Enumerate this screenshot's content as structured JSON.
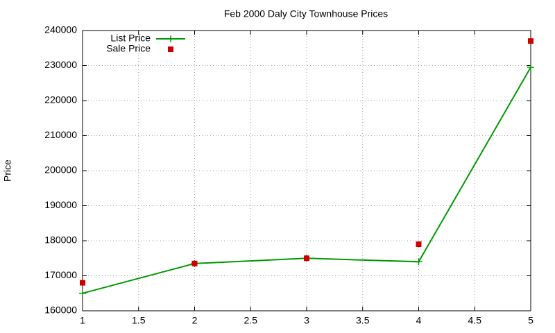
{
  "chart_data": {
    "type": "line",
    "title": "Feb 2000 Daly City Townhouse Prices",
    "y_label": "Price",
    "x": [
      1,
      2,
      3,
      4,
      5
    ],
    "series": [
      {
        "name": "List Price",
        "color": "#009900",
        "style": "linespoints",
        "values": [
          165000,
          173500,
          175000,
          174000,
          229500
        ]
      },
      {
        "name": "Sale Price",
        "color": "#cc0000",
        "style": "points",
        "values": [
          168000,
          173500,
          175000,
          179000,
          237000
        ]
      }
    ],
    "xlim": [
      1,
      5
    ],
    "xticks": [
      1,
      1.5,
      2,
      2.5,
      3,
      3.5,
      4,
      4.5,
      5
    ],
    "ylim": [
      160000,
      240000
    ],
    "yticks": [
      160000,
      170000,
      180000,
      190000,
      200000,
      210000,
      220000,
      230000,
      240000
    ],
    "grid": true,
    "legend": "top-left"
  }
}
